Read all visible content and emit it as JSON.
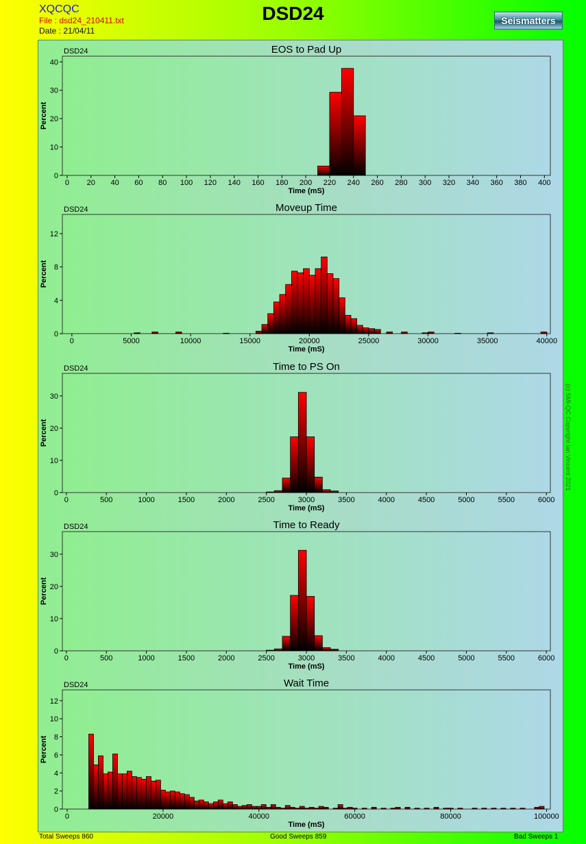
{
  "header": {
    "app_name": "XQCQC",
    "file_line": "File : dsd24_210411.txt",
    "date_line": "Date : 21/04/11",
    "title": "DSD24",
    "logo_text": "Seismatters"
  },
  "copyright": "(c) SMI-QC Copyright Ian Vincent 2021",
  "footer": {
    "total": "Total Sweeps 860",
    "good": "Good Sweeps 859",
    "bad": "Bad Sweeps 1"
  },
  "colors": {
    "bar_top": "#ff0000",
    "bar_bottom": "#000000",
    "plot_bg_left": "#90ee90",
    "plot_bg_right": "#add8e6"
  },
  "chart_data": [
    {
      "type": "bar",
      "tag": "DSD24",
      "title": "EOS to Pad Up",
      "xlabel": "Time (mS)",
      "ylabel": "Percent",
      "xlim": [
        -4,
        405
      ],
      "ylim": [
        0,
        42
      ],
      "xticks": [
        0,
        20,
        40,
        60,
        80,
        100,
        120,
        140,
        160,
        180,
        200,
        220,
        240,
        260,
        280,
        300,
        320,
        340,
        360,
        380,
        400
      ],
      "yticks": [
        0,
        10,
        20,
        30,
        40
      ],
      "bin_width": 10,
      "bars": [
        [
          215,
          3.3
        ],
        [
          225,
          29.3
        ],
        [
          235,
          37.7
        ],
        [
          245,
          21.0
        ]
      ]
    },
    {
      "type": "bar",
      "tag": "DSD24",
      "title": "Moveup Time",
      "xlabel": "Time (mS)",
      "ylabel": "Percent",
      "xlim": [
        -800,
        40300
      ],
      "ylim": [
        0,
        14.3
      ],
      "xticks": [
        0,
        5000,
        10000,
        15000,
        20000,
        25000,
        30000,
        35000,
        40000
      ],
      "yticks": [
        0,
        4,
        8,
        12
      ],
      "bin_width": 500,
      "bars": [
        [
          5500,
          0.1
        ],
        [
          7000,
          0.2
        ],
        [
          9000,
          0.2
        ],
        [
          13000,
          0.05
        ],
        [
          15750,
          0.3
        ],
        [
          16250,
          1.1
        ],
        [
          16750,
          2.4
        ],
        [
          17250,
          3.8
        ],
        [
          17750,
          4.7
        ],
        [
          18250,
          5.9
        ],
        [
          18750,
          7.5
        ],
        [
          19250,
          7.3
        ],
        [
          19750,
          7.8
        ],
        [
          20250,
          7.0
        ],
        [
          20750,
          7.8
        ],
        [
          21250,
          9.2
        ],
        [
          21750,
          7.2
        ],
        [
          22250,
          6.6
        ],
        [
          22750,
          4.3
        ],
        [
          23250,
          2.2
        ],
        [
          23750,
          1.8
        ],
        [
          24250,
          1.0
        ],
        [
          24750,
          0.7
        ],
        [
          25250,
          0.6
        ],
        [
          25750,
          0.5
        ],
        [
          26750,
          0.2
        ],
        [
          28000,
          0.2
        ],
        [
          29750,
          0.1
        ],
        [
          30250,
          0.2
        ],
        [
          32500,
          0.05
        ],
        [
          35250,
          0.1
        ],
        [
          39750,
          0.2
        ]
      ]
    },
    {
      "type": "bar",
      "tag": "DSD24",
      "title": "Time to PS On",
      "xlabel": "Time (mS)",
      "ylabel": "Percent",
      "xlim": [
        -50,
        6050
      ],
      "ylim": [
        0,
        37
      ],
      "xticks": [
        0,
        500,
        1000,
        1500,
        2000,
        2500,
        3000,
        3500,
        4000,
        4500,
        5000,
        5500,
        6000
      ],
      "yticks": [
        0,
        10,
        20,
        30
      ],
      "bin_width": 100,
      "bars": [
        [
          2550,
          0.2
        ],
        [
          2650,
          0.6
        ],
        [
          2750,
          4.5
        ],
        [
          2850,
          17.3
        ],
        [
          2950,
          31.1
        ],
        [
          3050,
          17.3
        ],
        [
          3150,
          4.8
        ],
        [
          3250,
          0.9
        ],
        [
          3350,
          0.5
        ]
      ]
    },
    {
      "type": "bar",
      "tag": "DSD24",
      "title": "Time to Ready",
      "xlabel": "Time (mS)",
      "ylabel": "Percent",
      "xlim": [
        -50,
        6050
      ],
      "ylim": [
        0,
        37
      ],
      "xticks": [
        0,
        500,
        1000,
        1500,
        2000,
        2500,
        3000,
        3500,
        4000,
        4500,
        5000,
        5500,
        6000
      ],
      "yticks": [
        0,
        10,
        20,
        30
      ],
      "bin_width": 100,
      "bars": [
        [
          2550,
          0.2
        ],
        [
          2650,
          0.6
        ],
        [
          2750,
          4.5
        ],
        [
          2850,
          17.2
        ],
        [
          2950,
          31.2
        ],
        [
          3050,
          16.9
        ],
        [
          3150,
          4.7
        ],
        [
          3250,
          1.0
        ],
        [
          3350,
          0.5
        ]
      ]
    },
    {
      "type": "bar",
      "tag": "DSD24",
      "title": "Wait Time",
      "xlabel": "Time (mS)",
      "ylabel": "Percent",
      "xlim": [
        -1000,
        100800
      ],
      "ylim": [
        0,
        13.2
      ],
      "xticks": [
        0,
        20000,
        40000,
        60000,
        80000,
        100000
      ],
      "yticks": [
        0,
        2,
        4,
        6,
        8,
        10,
        12
      ],
      "bin_width": 1000,
      "bars": [
        [
          5000,
          8.3
        ],
        [
          6000,
          4.9
        ],
        [
          7000,
          5.9
        ],
        [
          8000,
          3.9
        ],
        [
          9000,
          4.1
        ],
        [
          10000,
          6.1
        ],
        [
          11000,
          3.9
        ],
        [
          12000,
          3.9
        ],
        [
          13000,
          4.2
        ],
        [
          14000,
          3.6
        ],
        [
          15000,
          3.5
        ],
        [
          16000,
          3.3
        ],
        [
          17000,
          3.6
        ],
        [
          18000,
          3.1
        ],
        [
          19000,
          3.2
        ],
        [
          20000,
          2.1
        ],
        [
          21000,
          1.9
        ],
        [
          22000,
          2.0
        ],
        [
          23000,
          1.9
        ],
        [
          24000,
          1.7
        ],
        [
          25000,
          1.6
        ],
        [
          26000,
          1.3
        ],
        [
          27000,
          0.9
        ],
        [
          28000,
          1.0
        ],
        [
          29000,
          0.8
        ],
        [
          30000,
          0.6
        ],
        [
          31000,
          0.8
        ],
        [
          32000,
          1.0
        ],
        [
          33000,
          0.6
        ],
        [
          34000,
          0.8
        ],
        [
          35000,
          0.5
        ],
        [
          36000,
          0.3
        ],
        [
          37000,
          0.4
        ],
        [
          38000,
          0.5
        ],
        [
          39000,
          0.3
        ],
        [
          40000,
          0.3
        ],
        [
          41000,
          0.5
        ],
        [
          42000,
          0.2
        ],
        [
          43000,
          0.5
        ],
        [
          44000,
          0.2
        ],
        [
          45000,
          0.1
        ],
        [
          46000,
          0.4
        ],
        [
          47000,
          0.2
        ],
        [
          48000,
          0.1
        ],
        [
          49000,
          0.3
        ],
        [
          50000,
          0.1
        ],
        [
          51000,
          0.2
        ],
        [
          52000,
          0.1
        ],
        [
          53000,
          0.3
        ],
        [
          54000,
          0.2
        ],
        [
          56000,
          0.1
        ],
        [
          57000,
          0.5
        ],
        [
          58000,
          0.1
        ],
        [
          59000,
          0.2
        ],
        [
          60000,
          0.1
        ],
        [
          62000,
          0.1
        ],
        [
          64000,
          0.2
        ],
        [
          66000,
          0.1
        ],
        [
          68000,
          0.1
        ],
        [
          69000,
          0.2
        ],
        [
          71000,
          0.2
        ],
        [
          73000,
          0.1
        ],
        [
          75000,
          0.1
        ],
        [
          77000,
          0.2
        ],
        [
          79000,
          0.1
        ],
        [
          80000,
          0.1
        ],
        [
          82000,
          0.1
        ],
        [
          85000,
          0.1
        ],
        [
          87000,
          0.1
        ],
        [
          89000,
          0.1
        ],
        [
          91000,
          0.1
        ],
        [
          93000,
          0.1
        ],
        [
          95000,
          0.1
        ],
        [
          98000,
          0.2
        ],
        [
          99000,
          0.3
        ]
      ]
    }
  ]
}
